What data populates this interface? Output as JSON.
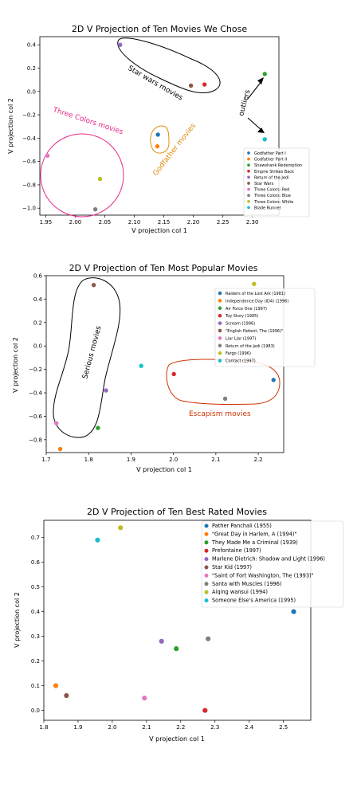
{
  "colors": [
    "#1f77b4",
    "#ff7f0e",
    "#2ca02c",
    "#d62728",
    "#9467bd",
    "#8c564b",
    "#e377c2",
    "#7f7f7f",
    "#bcbd22",
    "#17becf"
  ],
  "chart_data": [
    {
      "type": "scatter",
      "title": "2D V Projection of Ten Movies We Chose",
      "xlabel": "V projection col 1",
      "ylabel": "V projection col 2",
      "xlim": [
        1.94,
        2.345
      ],
      "ylim": [
        -1.06,
        0.47
      ],
      "xticks": [
        "1.95",
        "2.00",
        "2.05",
        "2.10",
        "2.15",
        "2.20",
        "2.25",
        "2.30"
      ],
      "yticks": [
        "0.4",
        "0.2",
        "0.0",
        "−0.2",
        "−0.4",
        "−0.6",
        "−0.8",
        "−1.0"
      ],
      "legend_position": "lower-right",
      "points": [
        {
          "label": "Godfather Part I",
          "x": 2.14,
          "y": -0.37
        },
        {
          "label": "Godfather Part II",
          "x": 2.139,
          "y": -0.47
        },
        {
          "label": "Shawshank Redemption",
          "x": 2.321,
          "y": 0.15
        },
        {
          "label": "Empire Strikes Back",
          "x": 2.219,
          "y": 0.06
        },
        {
          "label": "Return of the Jedi",
          "x": 2.076,
          "y": 0.4
        },
        {
          "label": "Star Wars",
          "x": 2.196,
          "y": 0.05
        },
        {
          "label": "Three Colors: Red",
          "x": 1.953,
          "y": -0.55
        },
        {
          "label": "Three Colors: Blue",
          "x": 2.034,
          "y": -1.01
        },
        {
          "label": "Three Colors: White",
          "x": 2.042,
          "y": -0.75
        },
        {
          "label": "Blade Runner",
          "x": 2.321,
          "y": -0.41
        }
      ],
      "annotations": {
        "star_wars": "Star wars movies",
        "three_colors": "Three Colors movies",
        "godfather": "Godfather movies",
        "outliers": "outliers"
      }
    },
    {
      "type": "scatter",
      "title": "2D V Projection of Ten Most Popular Movies",
      "xlabel": "V projection col 1",
      "ylabel": "V projection col 2",
      "xlim": [
        1.7,
        2.26
      ],
      "ylim": [
        -0.91,
        0.6
      ],
      "xticks": [
        "1.7",
        "1.8",
        "1.9",
        "2.0",
        "2.1",
        "2.2"
      ],
      "yticks": [
        "0.6",
        "0.4",
        "0.2",
        "0.0",
        "−0.2",
        "−0.4",
        "−0.6",
        "−0.8"
      ],
      "legend_position": "upper-right",
      "points": [
        {
          "label": "Raiders of the Lost Ark (1981)",
          "x": 2.236,
          "y": -0.29
        },
        {
          "label": "Independence Day (ID4) (1996)",
          "x": 1.733,
          "y": -0.88
        },
        {
          "label": "Air Force One (1997)",
          "x": 1.822,
          "y": -0.7
        },
        {
          "label": "Toy Story (1995)",
          "x": 2.001,
          "y": -0.24
        },
        {
          "label": "Scream (1996)",
          "x": 1.841,
          "y": -0.38
        },
        {
          "label": "\"English Patient, The (1996)\"",
          "x": 1.812,
          "y": 0.52
        },
        {
          "label": "Liar Liar (1997)",
          "x": 1.724,
          "y": -0.66
        },
        {
          "label": "Return of the Jedi (1983)",
          "x": 2.122,
          "y": -0.45
        },
        {
          "label": "Fargo (1996)",
          "x": 2.19,
          "y": 0.53
        },
        {
          "label": "Contact (1997)",
          "x": 1.924,
          "y": -0.17
        }
      ],
      "annotations": {
        "serious": "Serious movies",
        "escapism": "Escapism movies"
      }
    },
    {
      "type": "scatter",
      "title": "2D V Projection of Ten Best Rated Movies",
      "xlabel": "V projection col 1",
      "ylabel": "V projection col 2",
      "xlim": [
        1.8,
        2.58
      ],
      "ylim": [
        -0.04,
        0.77
      ],
      "xticks": [
        "1.8",
        "1.9",
        "2.0",
        "2.1",
        "2.2",
        "2.3",
        "2.4",
        "2.5"
      ],
      "yticks": [
        "0.7",
        "0.6",
        "0.5",
        "0.4",
        "0.3",
        "0.2",
        "0.1",
        "0.0"
      ],
      "legend_position": "upper-right",
      "points": [
        {
          "label": "Pather Panchali (1955)",
          "x": 2.53,
          "y": 0.4
        },
        {
          "label": "\"Great Day in Harlem, A (1994)\"",
          "x": 1.835,
          "y": 0.1
        },
        {
          "label": "They Made Me a Criminal (1939)",
          "x": 2.187,
          "y": 0.25
        },
        {
          "label": "Prefontaine (1997)",
          "x": 2.271,
          "y": 0.0
        },
        {
          "label": "Marlene Dietrich: Shadow and Light (1996)",
          "x": 2.144,
          "y": 0.28
        },
        {
          "label": "Star Kid (1997)",
          "x": 1.866,
          "y": 0.06
        },
        {
          "label": "\"Saint of Fort Washington, The (1993)\"",
          "x": 2.094,
          "y": 0.05
        },
        {
          "label": "Santa with Muscles (1996)",
          "x": 2.28,
          "y": 0.29
        },
        {
          "label": "Aiqing wansui (1994)",
          "x": 2.024,
          "y": 0.74
        },
        {
          "label": "Someone Else's America (1995)",
          "x": 1.957,
          "y": 0.69
        }
      ]
    }
  ]
}
